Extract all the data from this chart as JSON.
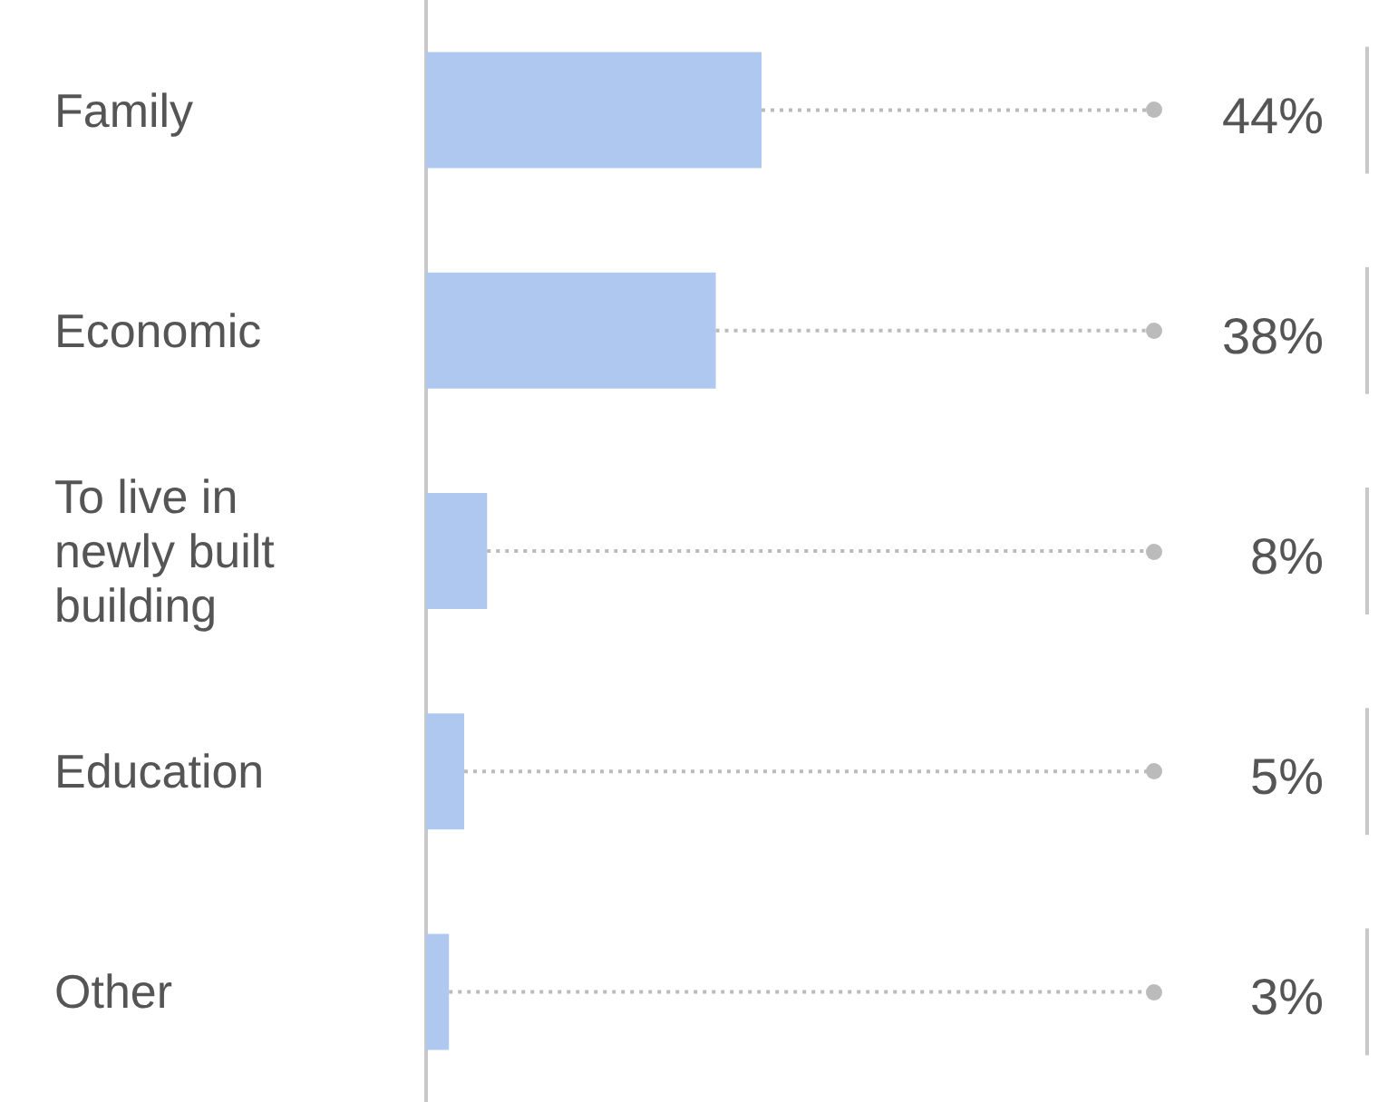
{
  "chart_data": {
    "type": "bar",
    "orientation": "horizontal",
    "categories": [
      "Family",
      "Economic",
      "To live in newly built building",
      "Education",
      "Other"
    ],
    "values": [
      44,
      38,
      8,
      5,
      3
    ],
    "color": "#aec8f0",
    "value_labels": [
      "44%",
      "38%",
      "8%",
      "5%",
      "3%"
    ],
    "grid": false
  }
}
